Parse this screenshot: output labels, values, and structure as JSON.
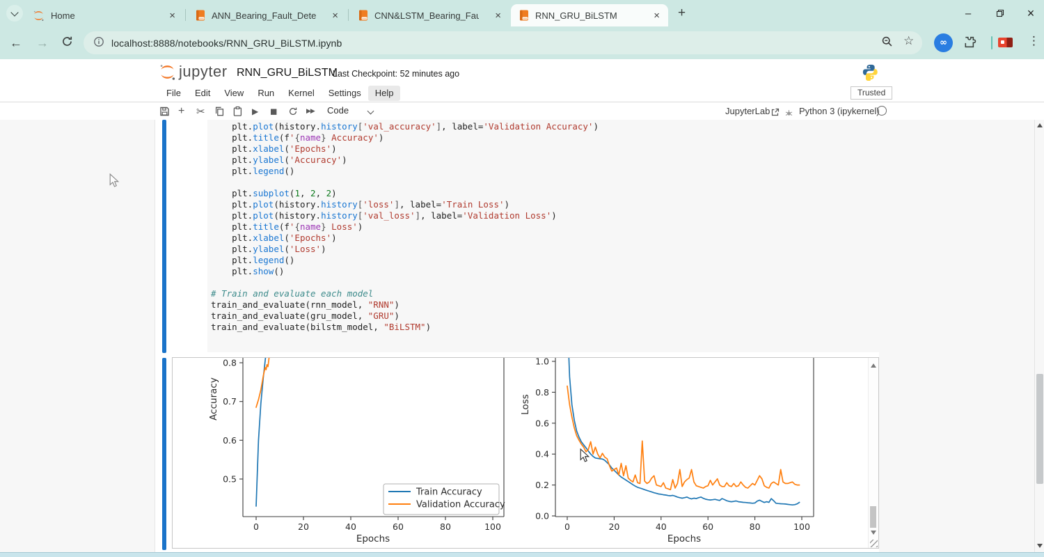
{
  "browser": {
    "tabs": [
      {
        "title": "Home",
        "icon": "jupyter-orbit",
        "active": false
      },
      {
        "title": "ANN_Bearing_Fault_Detection",
        "icon": "notebook-book",
        "active": false
      },
      {
        "title": "CNN&LSTM_Bearing_Fault_Dete",
        "icon": "notebook-book",
        "active": false
      },
      {
        "title": "RNN_GRU_BiLSTM",
        "icon": "notebook-book",
        "active": true
      }
    ],
    "close_glyph": "×",
    "new_tab_glyph": "+",
    "window_controls": {
      "minimize": "–",
      "close": "×"
    },
    "nav": {
      "url": "localhost:8888/notebooks/RNN_GRU_BiLSTM.ipynb",
      "back": "←",
      "forward": "→"
    }
  },
  "jupyter": {
    "brand": "jupyter",
    "notebook_title": "RNN_GRU_BiLSTM",
    "checkpoint": "Last Checkpoint: 52 minutes ago",
    "menu": [
      "File",
      "Edit",
      "View",
      "Run",
      "Kernel",
      "Settings",
      "Help"
    ],
    "trusted_badge": "Trusted",
    "toolbar": {
      "cell_type": "Code",
      "jupyterlab_link": "JupyterLab",
      "kernel_name": "Python 3 (ipykernel)"
    }
  },
  "code": {
    "lines": [
      [
        [
          "pl",
          "    plt."
        ],
        [
          "fn",
          "plot"
        ],
        [
          "pl",
          "(history."
        ],
        [
          "fn",
          "history"
        ],
        [
          "pu",
          "["
        ],
        [
          "st",
          "'val_accuracy'"
        ],
        [
          "pu",
          "]"
        ],
        [
          "pl",
          ", label="
        ],
        [
          "st",
          "'Validation Accuracy'"
        ],
        [
          "pl",
          ")"
        ]
      ],
      [
        [
          "pl",
          "    plt."
        ],
        [
          "fn",
          "title"
        ],
        [
          "pl",
          "(f"
        ],
        [
          "st",
          "'"
        ],
        [
          "pu",
          "{"
        ],
        [
          "fs",
          "name"
        ],
        [
          "pu",
          "}"
        ],
        [
          "st",
          " Accuracy'"
        ],
        [
          "pl",
          ")"
        ]
      ],
      [
        [
          "pl",
          "    plt."
        ],
        [
          "fn",
          "xlabel"
        ],
        [
          "pl",
          "("
        ],
        [
          "st",
          "'Epochs'"
        ],
        [
          "pl",
          ")"
        ]
      ],
      [
        [
          "pl",
          "    plt."
        ],
        [
          "fn",
          "ylabel"
        ],
        [
          "pl",
          "("
        ],
        [
          "st",
          "'Accuracy'"
        ],
        [
          "pl",
          ")"
        ]
      ],
      [
        [
          "pl",
          "    plt."
        ],
        [
          "fn",
          "legend"
        ],
        [
          "pl",
          "()"
        ]
      ],
      [],
      [
        [
          "pl",
          "    plt."
        ],
        [
          "fn",
          "subplot"
        ],
        [
          "pl",
          "("
        ],
        [
          "nu",
          "1"
        ],
        [
          "pl",
          ", "
        ],
        [
          "nu",
          "2"
        ],
        [
          "pl",
          ", "
        ],
        [
          "nu",
          "2"
        ],
        [
          "pl",
          ")"
        ]
      ],
      [
        [
          "pl",
          "    plt."
        ],
        [
          "fn",
          "plot"
        ],
        [
          "pl",
          "(history."
        ],
        [
          "fn",
          "history"
        ],
        [
          "pu",
          "["
        ],
        [
          "st",
          "'loss'"
        ],
        [
          "pu",
          "]"
        ],
        [
          "pl",
          ", label="
        ],
        [
          "st",
          "'Train Loss'"
        ],
        [
          "pl",
          ")"
        ]
      ],
      [
        [
          "pl",
          "    plt."
        ],
        [
          "fn",
          "plot"
        ],
        [
          "pl",
          "(history."
        ],
        [
          "fn",
          "history"
        ],
        [
          "pu",
          "["
        ],
        [
          "st",
          "'val_loss'"
        ],
        [
          "pu",
          "]"
        ],
        [
          "pl",
          ", label="
        ],
        [
          "st",
          "'Validation Loss'"
        ],
        [
          "pl",
          ")"
        ]
      ],
      [
        [
          "pl",
          "    plt."
        ],
        [
          "fn",
          "title"
        ],
        [
          "pl",
          "(f"
        ],
        [
          "st",
          "'"
        ],
        [
          "pu",
          "{"
        ],
        [
          "fs",
          "name"
        ],
        [
          "pu",
          "}"
        ],
        [
          "st",
          " Loss'"
        ],
        [
          "pl",
          ")"
        ]
      ],
      [
        [
          "pl",
          "    plt."
        ],
        [
          "fn",
          "xlabel"
        ],
        [
          "pl",
          "("
        ],
        [
          "st",
          "'Epochs'"
        ],
        [
          "pl",
          ")"
        ]
      ],
      [
        [
          "pl",
          "    plt."
        ],
        [
          "fn",
          "ylabel"
        ],
        [
          "pl",
          "("
        ],
        [
          "st",
          "'Loss'"
        ],
        [
          "pl",
          ")"
        ]
      ],
      [
        [
          "pl",
          "    plt."
        ],
        [
          "fn",
          "legend"
        ],
        [
          "pl",
          "()"
        ]
      ],
      [
        [
          "pl",
          "    plt."
        ],
        [
          "fn",
          "show"
        ],
        [
          "pl",
          "()"
        ]
      ],
      [],
      [
        [
          "cm",
          "# Train and evaluate each model"
        ]
      ],
      [
        [
          "pl",
          "train_and_evaluate(rnn_model, "
        ],
        [
          "st",
          "\"RNN\""
        ],
        [
          "pl",
          ")"
        ]
      ],
      [
        [
          "pl",
          "train_and_evaluate(gru_model, "
        ],
        [
          "st",
          "\"GRU\""
        ],
        [
          "pl",
          ")"
        ]
      ],
      [
        [
          "pl",
          "train_and_evaluate(bilstm_model, "
        ],
        [
          "st",
          "\"BiLSTM\""
        ],
        [
          "pl",
          ")"
        ]
      ]
    ]
  },
  "chart_data": [
    {
      "type": "line",
      "subplot": "accuracy",
      "xlabel": "Epochs",
      "ylabel": "Accuracy",
      "x_ticks": [
        0,
        20,
        40,
        60,
        80,
        100
      ],
      "y_ticks": [
        0.5,
        0.6,
        0.7,
        0.8
      ],
      "visible_xlim": [
        -5,
        104
      ],
      "visible_ylim": [
        0.4,
        0.81
      ],
      "grid": false,
      "legend": {
        "position": "lower right",
        "entries": [
          "Train Accuracy",
          "Validation Accuracy"
        ]
      },
      "series": [
        {
          "name": "Train Accuracy",
          "color": "#1f77b4",
          "x": [
            0,
            1,
            2,
            3,
            4,
            5
          ],
          "values": [
            0.43,
            0.6,
            0.695,
            0.76,
            0.815,
            0.87
          ]
        },
        {
          "name": "Validation Accuracy",
          "color": "#ff7f0e",
          "x": [
            0,
            1,
            2,
            3,
            3.8,
            4.2,
            4.6,
            5,
            5.4,
            6
          ],
          "values": [
            0.685,
            0.705,
            0.73,
            0.765,
            0.788,
            0.782,
            0.795,
            0.79,
            0.81,
            0.845
          ]
        }
      ]
    },
    {
      "type": "line",
      "subplot": "loss",
      "xlabel": "Epochs",
      "ylabel": "Loss",
      "x_ticks": [
        0,
        20,
        40,
        60,
        80,
        100
      ],
      "y_ticks": [
        0.0,
        0.2,
        0.4,
        0.6,
        0.8,
        1.0
      ],
      "visible_xlim": [
        -5,
        104
      ],
      "visible_ylim": [
        0.0,
        1.02
      ],
      "grid": false,
      "legend": null,
      "series": [
        {
          "name": "Train Loss",
          "color": "#1f77b4",
          "values": [
            1.3,
            0.9,
            0.72,
            0.62,
            0.55,
            0.51,
            0.48,
            0.46,
            0.44,
            0.42,
            0.4,
            0.385,
            0.375,
            0.372,
            0.37,
            0.368,
            0.36,
            0.345,
            0.33,
            0.31,
            0.295,
            0.28,
            0.265,
            0.252,
            0.242,
            0.232,
            0.222,
            0.212,
            0.202,
            0.193,
            0.185,
            0.18,
            0.175,
            0.17,
            0.165,
            0.16,
            0.155,
            0.15,
            0.146,
            0.142,
            0.14,
            0.137,
            0.135,
            0.132,
            0.13,
            0.133,
            0.128,
            0.122,
            0.118,
            0.115,
            0.118,
            0.122,
            0.115,
            0.11,
            0.115,
            0.112,
            0.118,
            0.122,
            0.114,
            0.108,
            0.105,
            0.103,
            0.105,
            0.107,
            0.103,
            0.1,
            0.112,
            0.106,
            0.098,
            0.094,
            0.092,
            0.094,
            0.097,
            0.092,
            0.09,
            0.088,
            0.087,
            0.085,
            0.084,
            0.082,
            0.084,
            0.096,
            0.102,
            0.094,
            0.087,
            0.092,
            0.088,
            0.112,
            0.098,
            0.082,
            0.08,
            0.079,
            0.078,
            0.077,
            0.075,
            0.073,
            0.071,
            0.073,
            0.078,
            0.088
          ]
        },
        {
          "name": "Validation Loss",
          "color": "#ff7f0e",
          "values": [
            0.84,
            0.72,
            0.64,
            0.57,
            0.52,
            0.49,
            0.465,
            0.445,
            0.415,
            0.43,
            0.48,
            0.4,
            0.445,
            0.4,
            0.375,
            0.405,
            0.38,
            0.37,
            0.325,
            0.29,
            0.3,
            0.31,
            0.265,
            0.34,
            0.26,
            0.325,
            0.245,
            0.23,
            0.22,
            0.265,
            0.215,
            0.21,
            0.485,
            0.225,
            0.21,
            0.22,
            0.245,
            0.26,
            0.2,
            0.195,
            0.19,
            0.215,
            0.18,
            0.175,
            0.17,
            0.235,
            0.18,
            0.21,
            0.3,
            0.19,
            0.22,
            0.235,
            0.245,
            0.3,
            0.22,
            0.195,
            0.19,
            0.185,
            0.18,
            0.19,
            0.195,
            0.23,
            0.2,
            0.22,
            0.24,
            0.2,
            0.19,
            0.19,
            0.215,
            0.195,
            0.19,
            0.21,
            0.19,
            0.195,
            0.22,
            0.2,
            0.185,
            0.18,
            0.195,
            0.21,
            0.2,
            0.23,
            0.26,
            0.24,
            0.195,
            0.185,
            0.18,
            0.21,
            0.22,
            0.21,
            0.2,
            0.3,
            0.22,
            0.21,
            0.21,
            0.215,
            0.22,
            0.205,
            0.2,
            0.2
          ]
        }
      ]
    }
  ]
}
